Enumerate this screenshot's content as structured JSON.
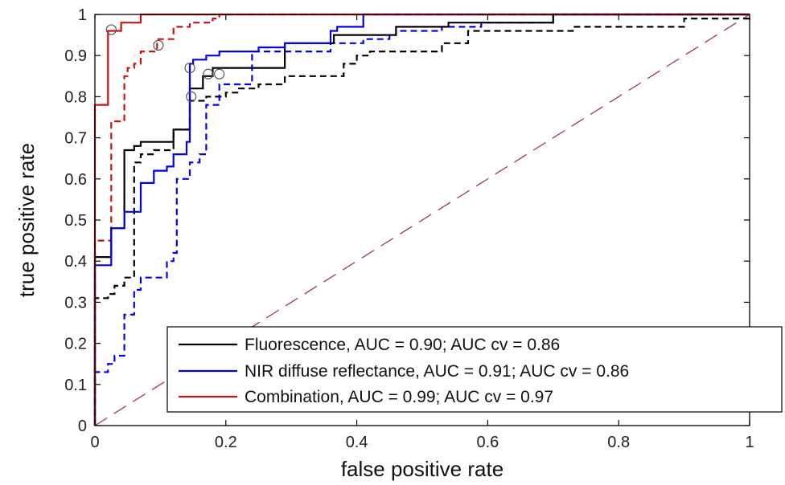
{
  "chart_data": {
    "type": "line",
    "title": "",
    "xlabel": "false positive rate",
    "ylabel": "true positive rate",
    "xlim": [
      0,
      1
    ],
    "ylim": [
      0,
      1
    ],
    "xticks": [
      0,
      0.2,
      0.4,
      0.6,
      0.8,
      1
    ],
    "yticks": [
      0,
      0.1,
      0.2,
      0.3,
      0.4,
      0.5,
      0.6,
      0.7,
      0.8,
      0.9,
      1
    ],
    "xtick_labels": [
      "0",
      "0.2",
      "0.4",
      "0.6",
      "0.8",
      "1"
    ],
    "ytick_labels": [
      "0",
      "0.1",
      "0.2",
      "0.3",
      "0.4",
      "0.5",
      "0.6",
      "0.7",
      "0.8",
      "0.9",
      "1"
    ],
    "grid": false,
    "legend_position": "bottom-right",
    "legend": [
      {
        "label": "Fluorescence, AUC = 0.90; AUC cv = 0.86",
        "color": "#000000"
      },
      {
        "label": "NIR diffuse reflectance, AUC = 0.91; AUC cv = 0.86",
        "color": "#0000ee"
      },
      {
        "label": "Combination, AUC = 0.99; AUC cv = 0.97",
        "color": "#cc1111"
      }
    ],
    "series": [
      {
        "name": "Fluorescence, AUC = 0.90; AUC cv = 0.86",
        "color": "#000000",
        "dash": "solid",
        "points": [
          [
            0,
            0
          ],
          [
            0,
            0.41
          ],
          [
            0.025,
            0.41
          ],
          [
            0.025,
            0.48
          ],
          [
            0.045,
            0.48
          ],
          [
            0.045,
            0.67
          ],
          [
            0.06,
            0.67
          ],
          [
            0.06,
            0.68
          ],
          [
            0.07,
            0.68
          ],
          [
            0.07,
            0.69
          ],
          [
            0.12,
            0.69
          ],
          [
            0.12,
            0.72
          ],
          [
            0.145,
            0.72
          ],
          [
            0.145,
            0.82
          ],
          [
            0.165,
            0.82
          ],
          [
            0.165,
            0.85
          ],
          [
            0.18,
            0.85
          ],
          [
            0.18,
            0.87
          ],
          [
            0.24,
            0.87
          ],
          [
            0.24,
            0.87
          ],
          [
            0.29,
            0.87
          ],
          [
            0.29,
            0.93
          ],
          [
            0.365,
            0.93
          ],
          [
            0.365,
            0.95
          ],
          [
            0.46,
            0.95
          ],
          [
            0.46,
            0.97
          ],
          [
            0.54,
            0.97
          ],
          [
            0.54,
            0.98
          ],
          [
            0.66,
            0.98
          ],
          [
            0.66,
            0.98
          ],
          [
            0.7,
            0.98
          ],
          [
            0.7,
            1
          ],
          [
            1,
            1
          ]
        ]
      },
      {
        "name": "Fluorescence cv",
        "color": "#000000",
        "dash": "dashed",
        "points": [
          [
            0,
            0
          ],
          [
            0,
            0.31
          ],
          [
            0.02,
            0.31
          ],
          [
            0.02,
            0.32
          ],
          [
            0.03,
            0.32
          ],
          [
            0.03,
            0.34
          ],
          [
            0.045,
            0.34
          ],
          [
            0.045,
            0.36
          ],
          [
            0.06,
            0.36
          ],
          [
            0.06,
            0.64
          ],
          [
            0.07,
            0.64
          ],
          [
            0.07,
            0.66
          ],
          [
            0.09,
            0.66
          ],
          [
            0.09,
            0.67
          ],
          [
            0.12,
            0.67
          ],
          [
            0.12,
            0.72
          ],
          [
            0.145,
            0.72
          ],
          [
            0.145,
            0.79
          ],
          [
            0.17,
            0.79
          ],
          [
            0.17,
            0.8
          ],
          [
            0.2,
            0.8
          ],
          [
            0.2,
            0.81
          ],
          [
            0.22,
            0.81
          ],
          [
            0.22,
            0.82
          ],
          [
            0.25,
            0.82
          ],
          [
            0.25,
            0.83
          ],
          [
            0.29,
            0.83
          ],
          [
            0.29,
            0.85
          ],
          [
            0.38,
            0.85
          ],
          [
            0.38,
            0.88
          ],
          [
            0.4,
            0.88
          ],
          [
            0.4,
            0.9
          ],
          [
            0.42,
            0.9
          ],
          [
            0.42,
            0.91
          ],
          [
            0.53,
            0.91
          ],
          [
            0.53,
            0.93
          ],
          [
            0.57,
            0.93
          ],
          [
            0.57,
            0.96
          ],
          [
            0.73,
            0.96
          ],
          [
            0.73,
            0.97
          ],
          [
            0.9,
            0.97
          ],
          [
            0.9,
            0.99
          ],
          [
            1,
            0.99
          ],
          [
            1,
            1
          ]
        ]
      },
      {
        "name": "NIR diffuse reflectance, AUC = 0.91; AUC cv = 0.86",
        "color": "#0000ee",
        "dash": "solid",
        "points": [
          [
            0,
            0
          ],
          [
            0,
            0.39
          ],
          [
            0.025,
            0.39
          ],
          [
            0.025,
            0.48
          ],
          [
            0.045,
            0.48
          ],
          [
            0.045,
            0.52
          ],
          [
            0.07,
            0.52
          ],
          [
            0.07,
            0.59
          ],
          [
            0.09,
            0.59
          ],
          [
            0.09,
            0.62
          ],
          [
            0.11,
            0.62
          ],
          [
            0.11,
            0.63
          ],
          [
            0.12,
            0.63
          ],
          [
            0.12,
            0.66
          ],
          [
            0.14,
            0.66
          ],
          [
            0.14,
            0.69
          ],
          [
            0.145,
            0.69
          ],
          [
            0.145,
            0.88
          ],
          [
            0.15,
            0.88
          ],
          [
            0.15,
            0.89
          ],
          [
            0.17,
            0.89
          ],
          [
            0.17,
            0.9
          ],
          [
            0.19,
            0.9
          ],
          [
            0.19,
            0.91
          ],
          [
            0.25,
            0.91
          ],
          [
            0.25,
            0.92
          ],
          [
            0.29,
            0.92
          ],
          [
            0.29,
            0.93
          ],
          [
            0.36,
            0.93
          ],
          [
            0.36,
            0.96
          ],
          [
            0.37,
            0.96
          ],
          [
            0.37,
            0.97
          ],
          [
            0.41,
            0.97
          ],
          [
            0.41,
            1
          ],
          [
            1,
            1
          ]
        ]
      },
      {
        "name": "NIR diffuse reflectance cv",
        "color": "#0000ee",
        "dash": "dashed",
        "points": [
          [
            0,
            0
          ],
          [
            0,
            0.13
          ],
          [
            0.02,
            0.13
          ],
          [
            0.02,
            0.15
          ],
          [
            0.03,
            0.15
          ],
          [
            0.03,
            0.17
          ],
          [
            0.045,
            0.17
          ],
          [
            0.045,
            0.27
          ],
          [
            0.06,
            0.27
          ],
          [
            0.06,
            0.33
          ],
          [
            0.07,
            0.33
          ],
          [
            0.07,
            0.36
          ],
          [
            0.11,
            0.36
          ],
          [
            0.11,
            0.4
          ],
          [
            0.12,
            0.4
          ],
          [
            0.12,
            0.42
          ],
          [
            0.125,
            0.42
          ],
          [
            0.125,
            0.6
          ],
          [
            0.145,
            0.6
          ],
          [
            0.145,
            0.64
          ],
          [
            0.16,
            0.64
          ],
          [
            0.16,
            0.66
          ],
          [
            0.17,
            0.66
          ],
          [
            0.17,
            0.78
          ],
          [
            0.19,
            0.78
          ],
          [
            0.19,
            0.83
          ],
          [
            0.24,
            0.83
          ],
          [
            0.24,
            0.85
          ],
          [
            0.24,
            0.85
          ],
          [
            0.24,
            0.87
          ],
          [
            0.24,
            0.87
          ],
          [
            0.24,
            0.88
          ],
          [
            0.24,
            0.88
          ],
          [
            0.24,
            0.89
          ],
          [
            0.24,
            0.89
          ],
          [
            0.24,
            0.9
          ],
          [
            0.24,
            0.9
          ],
          [
            0.24,
            0.91
          ],
          [
            0.36,
            0.91
          ],
          [
            0.36,
            0.93
          ],
          [
            0.41,
            0.93
          ],
          [
            0.41,
            0.94
          ],
          [
            0.45,
            0.94
          ],
          [
            0.45,
            0.95
          ],
          [
            0.46,
            0.95
          ],
          [
            0.46,
            0.96
          ],
          [
            0.53,
            0.96
          ],
          [
            0.53,
            0.97
          ],
          [
            0.59,
            0.97
          ],
          [
            0.59,
            0.98
          ],
          [
            0.7,
            0.98
          ],
          [
            0.7,
            1
          ],
          [
            1,
            1
          ]
        ]
      },
      {
        "name": "Combination, AUC = 0.99; AUC cv = 0.97",
        "color": "#cc1111",
        "dash": "solid",
        "points": [
          [
            0,
            0
          ],
          [
            0,
            0.78
          ],
          [
            0.02,
            0.78
          ],
          [
            0.02,
            0.96
          ],
          [
            0.04,
            0.96
          ],
          [
            0.04,
            0.98
          ],
          [
            0.07,
            0.98
          ],
          [
            0.07,
            1
          ],
          [
            1,
            1
          ]
        ]
      },
      {
        "name": "Combination cv",
        "color": "#cc1111",
        "dash": "dashed",
        "points": [
          [
            0,
            0
          ],
          [
            0,
            0.45
          ],
          [
            0.025,
            0.45
          ],
          [
            0.025,
            0.74
          ],
          [
            0.045,
            0.74
          ],
          [
            0.045,
            0.85
          ],
          [
            0.05,
            0.85
          ],
          [
            0.05,
            0.87
          ],
          [
            0.06,
            0.87
          ],
          [
            0.06,
            0.88
          ],
          [
            0.07,
            0.88
          ],
          [
            0.07,
            0.91
          ],
          [
            0.095,
            0.91
          ],
          [
            0.095,
            0.94
          ],
          [
            0.12,
            0.94
          ],
          [
            0.12,
            0.97
          ],
          [
            0.145,
            0.97
          ],
          [
            0.145,
            0.98
          ],
          [
            0.18,
            0.98
          ],
          [
            0.18,
            0.99
          ],
          [
            0.19,
            0.99
          ],
          [
            0.19,
            1
          ],
          [
            1,
            1
          ]
        ]
      },
      {
        "name": "chance",
        "color": "#9a3b50",
        "dash": "long-dash",
        "points": [
          [
            0,
            0
          ],
          [
            1,
            1
          ]
        ]
      }
    ],
    "operating_points": [
      {
        "x": 0.025,
        "y": 0.963
      },
      {
        "x": 0.097,
        "y": 0.925
      },
      {
        "x": 0.145,
        "y": 0.87
      },
      {
        "x": 0.147,
        "y": 0.8
      },
      {
        "x": 0.173,
        "y": 0.855
      },
      {
        "x": 0.19,
        "y": 0.855
      }
    ]
  }
}
